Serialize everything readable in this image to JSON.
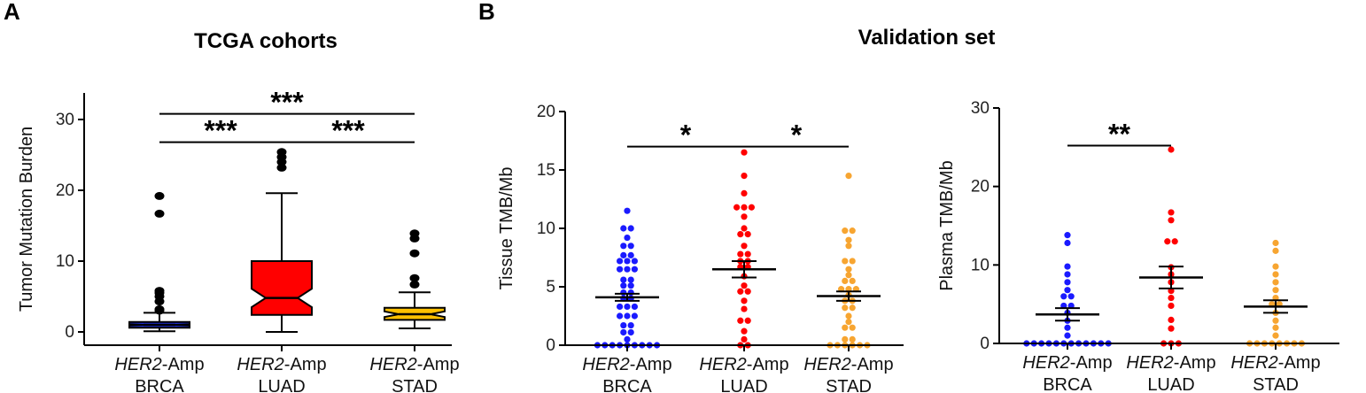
{
  "panels": {
    "a": {
      "letter": "A",
      "title": "TCGA cohorts"
    },
    "b": {
      "letter": "B",
      "title": "Validation set"
    }
  },
  "chart_data": [
    {
      "id": "tcga",
      "type": "box",
      "title": "TCGA cohorts",
      "ylabel": "Tumor Mutation Burden",
      "ylim": [
        0,
        30
      ],
      "yticks": [
        0,
        10,
        20,
        30
      ],
      "categories": [
        {
          "gene": "HER2",
          "suffix": "-Amp",
          "cohort": "BRCA"
        },
        {
          "gene": "HER2",
          "suffix": "-Amp",
          "cohort": "LUAD"
        },
        {
          "gene": "HER2",
          "suffix": "-Amp",
          "cohort": "STAD"
        }
      ],
      "boxes": [
        {
          "cohort": "BRCA",
          "color": "#1f2fd6",
          "q1": 0.6,
          "median": 1.0,
          "q3": 1.4,
          "notch_lo": 0.9,
          "notch_hi": 1.1,
          "whisker_lo": 0.1,
          "whisker_hi": 2.7,
          "outliers": [
            3.0,
            3.2,
            4.3,
            5.0,
            5.5,
            5.8,
            16.7,
            19.2
          ]
        },
        {
          "cohort": "LUAD",
          "color": "#ff0000",
          "q1": 2.4,
          "median": 4.8,
          "q3": 10.0,
          "notch_lo": 3.5,
          "notch_hi": 6.1,
          "whisker_lo": 0.0,
          "whisker_hi": 19.6,
          "outliers": [
            23.2,
            24.0,
            24.7,
            25.4
          ]
        },
        {
          "cohort": "STAD",
          "color": "#ffc000",
          "q1": 1.7,
          "median": 2.5,
          "q3": 3.4,
          "notch_lo": 2.1,
          "notch_hi": 2.9,
          "whisker_lo": 0.5,
          "whisker_hi": 5.6,
          "outliers": [
            6.7,
            7.6,
            11.1,
            13.2,
            13.9
          ]
        }
      ],
      "significance": [
        {
          "from": 0,
          "to": 2,
          "y": 30.8,
          "label": "***"
        },
        {
          "from": 0,
          "to": 1,
          "y": 26.8,
          "label": "***"
        },
        {
          "from": 1,
          "to": 2,
          "y": 26.8,
          "label": "***"
        }
      ]
    },
    {
      "id": "tissue",
      "type": "scatter",
      "ylabel": "Tissue TMB/Mb",
      "ylim": [
        0,
        20
      ],
      "yticks": [
        0,
        5,
        10,
        15,
        20
      ],
      "categories": [
        {
          "gene": "HER2",
          "suffix": "-Amp",
          "cohort": "BRCA"
        },
        {
          "gene": "HER2",
          "suffix": "-Amp",
          "cohort": "LUAD"
        },
        {
          "gene": "HER2",
          "suffix": "-Amp",
          "cohort": "STAD"
        }
      ],
      "series": [
        {
          "cohort": "BRCA",
          "color": "#1a1aff",
          "mean": 4.1,
          "sem_lo": 3.8,
          "sem_hi": 4.4,
          "values": [
            11.5,
            10.0,
            9.7,
            9.2,
            8.5,
            8.3,
            7.7,
            7.6,
            7.2,
            7.0,
            6.8,
            6.5,
            6.3,
            6.1,
            5.6,
            5.4,
            5.1,
            4.8,
            4.5,
            4.3,
            4.0,
            3.6,
            3.3,
            3.1,
            2.9,
            2.5,
            2.4,
            2.2,
            1.7,
            1.4,
            1.1,
            0.7,
            0.5,
            0.0,
            0.0,
            0.0,
            0.0,
            0.0,
            0.0,
            0.0,
            0.0,
            0.0
          ]
        },
        {
          "cohort": "LUAD",
          "color": "#ff0000",
          "mean": 6.5,
          "sem_lo": 5.8,
          "sem_hi": 7.2,
          "values": [
            16.5,
            14.5,
            13.0,
            11.8,
            11.7,
            11.5,
            11.0,
            10.0,
            9.5,
            9.2,
            8.5,
            7.8,
            7.6,
            7.2,
            7.0,
            6.7,
            6.3,
            5.9,
            5.1,
            4.6,
            4.4,
            3.8,
            3.1,
            2.1,
            2.0,
            1.2,
            0.5,
            0.0,
            0.0
          ]
        },
        {
          "cohort": "STAD",
          "color": "#f7a531",
          "mean": 4.2,
          "sem_lo": 3.8,
          "sem_hi": 4.6,
          "values": [
            14.5,
            9.8,
            9.6,
            9.0,
            8.5,
            7.2,
            7.0,
            6.5,
            6.0,
            5.5,
            5.1,
            4.8,
            4.7,
            4.5,
            4.3,
            3.8,
            3.6,
            3.2,
            2.9,
            2.5,
            2.0,
            1.5,
            1.2,
            0.5,
            0.3,
            0.0,
            0.0,
            0.0,
            0.0,
            0.0,
            0.0
          ]
        }
      ],
      "significance": [
        {
          "from": 0,
          "to": 1,
          "y": 17.0,
          "label": "*"
        },
        {
          "from": 1,
          "to": 2,
          "y": 17.0,
          "label": "*"
        }
      ]
    },
    {
      "id": "plasma",
      "type": "scatter",
      "ylabel": "Plasma TMB/Mb",
      "ylim": [
        0,
        30
      ],
      "yticks": [
        0,
        10,
        20,
        30
      ],
      "categories": [
        {
          "gene": "HER2",
          "suffix": "-Amp",
          "cohort": "BRCA"
        },
        {
          "gene": "HER2",
          "suffix": "-Amp",
          "cohort": "LUAD"
        },
        {
          "gene": "HER2",
          "suffix": "-Amp",
          "cohort": "STAD"
        }
      ],
      "series": [
        {
          "cohort": "BRCA",
          "color": "#1a1aff",
          "mean": 3.7,
          "sem_lo": 2.9,
          "sem_hi": 4.5,
          "values": [
            13.8,
            12.8,
            9.8,
            8.8,
            7.8,
            6.8,
            6.0,
            5.6,
            4.8,
            4.5,
            3.9,
            2.9,
            2.0,
            1.0,
            0.0,
            0.0,
            0.0,
            0.0,
            0.0,
            0.0,
            0.0,
            0.0,
            0.0,
            0.0,
            0.0,
            0.0
          ]
        },
        {
          "cohort": "LUAD",
          "color": "#ff0000",
          "mean": 8.4,
          "sem_lo": 7.0,
          "sem_hi": 9.8,
          "values": [
            24.7,
            16.7,
            15.7,
            13.0,
            12.7,
            9.7,
            8.8,
            7.8,
            6.7,
            5.8,
            4.8,
            3.0,
            1.9,
            0.0,
            0.0,
            0.0
          ]
        },
        {
          "cohort": "STAD",
          "color": "#f7a531",
          "mean": 4.7,
          "sem_lo": 3.9,
          "sem_hi": 5.5,
          "values": [
            12.8,
            11.8,
            9.8,
            8.8,
            7.8,
            6.8,
            5.8,
            5.0,
            4.8,
            3.9,
            2.9,
            2.0,
            1.0,
            0.0,
            0.0,
            0.0,
            0.0,
            0.0,
            0.0,
            0.0,
            0.0
          ]
        }
      ],
      "significance": [
        {
          "from": 0,
          "to": 1,
          "y": 25.2,
          "label": "**"
        }
      ]
    }
  ]
}
